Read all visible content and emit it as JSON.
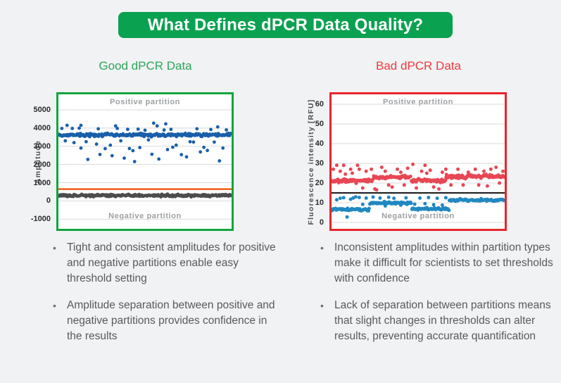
{
  "page": {
    "background": "#f1f2f3"
  },
  "banner": {
    "text": "What Defines dPCR Data Quality?",
    "bg": "#0aa150",
    "text_color": "#ffffff"
  },
  "columns": {
    "good": {
      "header": "Good dPCR Data",
      "header_color": "#2ca55c",
      "bullets": [
        "Tight and consistent amplitudes for positive and negative partitions enable easy threshold setting",
        "Amplitude separation between positive and negative partitions provides confidence in the results"
      ]
    },
    "bad": {
      "header": "Bad dPCR Data",
      "header_color": "#ef393f",
      "bullets": [
        "Inconsistent amplitudes within partition types make it difficult for scientists to set thresholds with confidence",
        "Lack of separation between partitions means that slight changes in thresholds can alter results, preventing accurate quantification"
      ]
    }
  },
  "chart_data": [
    {
      "type": "scatter",
      "title": "Good dPCR Data",
      "ylabel": "Amplitude",
      "xlabel": "",
      "ylim": [
        -1530,
        5850
      ],
      "xlim": [
        0,
        100
      ],
      "yticks": [
        5000,
        4000,
        3000,
        2000,
        1000,
        0,
        -1000
      ],
      "grid": true,
      "grid_color": "#d8d9db",
      "border_color": "#12a53e",
      "seed": 42,
      "annotations": {
        "positive": "Positive partition",
        "negative": "Negative partition"
      },
      "threshold": {
        "value": 650,
        "color": "#ef5a16",
        "width": 2.5
      },
      "series": [
        {
          "name": "positive-partition",
          "color": "#1a5fa9",
          "r": 2.4,
          "count": 270,
          "jitter": 120,
          "band": {
            "mean": 3620
          },
          "outliers": [
            [
              2,
              3980
            ],
            [
              4,
              3300
            ],
            [
              5,
              4150
            ],
            [
              8,
              3980
            ],
            [
              9,
              3200
            ],
            [
              12,
              3990
            ],
            [
              13,
              4150
            ],
            [
              13,
              2900
            ],
            [
              16,
              3250
            ],
            [
              17,
              2280
            ],
            [
              22,
              3120
            ],
            [
              23,
              3960
            ],
            [
              24,
              2550
            ],
            [
              27,
              2870
            ],
            [
              30,
              3060
            ],
            [
              31,
              2480
            ],
            [
              33,
              4120
            ],
            [
              34,
              3980
            ],
            [
              36,
              3300
            ],
            [
              38,
              2350
            ],
            [
              40,
              3930
            ],
            [
              41,
              2880
            ],
            [
              43,
              2760
            ],
            [
              44,
              2160
            ],
            [
              46,
              3940
            ],
            [
              47,
              2930
            ],
            [
              50,
              3880
            ],
            [
              52,
              3350
            ],
            [
              54,
              2560
            ],
            [
              55,
              4270
            ],
            [
              57,
              4120
            ],
            [
              58,
              2300
            ],
            [
              61,
              3890
            ],
            [
              62,
              4230
            ],
            [
              63,
              2820
            ],
            [
              65,
              3930
            ],
            [
              66,
              2950
            ],
            [
              68,
              3060
            ],
            [
              71,
              2540
            ],
            [
              74,
              2420
            ],
            [
              76,
              3250
            ],
            [
              78,
              3230
            ],
            [
              80,
              3960
            ],
            [
              82,
              2690
            ],
            [
              84,
              2940
            ],
            [
              86,
              2770
            ],
            [
              88,
              3920
            ],
            [
              90,
              3230
            ],
            [
              92,
              4060
            ],
            [
              93,
              2200
            ],
            [
              95,
              2900
            ],
            [
              97,
              3900
            ]
          ]
        },
        {
          "name": "negative-partition",
          "color": "#4d4d4f",
          "r": 2.4,
          "count": 270,
          "jitter": 95,
          "band": {
            "mean": 300
          },
          "outliers": []
        }
      ]
    },
    {
      "type": "scatter",
      "title": "Bad dPCR Data",
      "ylabel": "Fluorescence intensity [RFU]",
      "xlabel": "",
      "ylim": [
        -3.2,
        65
      ],
      "xlim": [
        0,
        100
      ],
      "yticks": [
        60,
        50,
        40,
        30,
        20,
        10,
        0
      ],
      "grid": true,
      "grid_color": "#d8d9db",
      "border_color": "#e9252c",
      "seed": 7,
      "annotations": {
        "positive": "Positive partition",
        "negative": "Negative partition"
      },
      "threshold": {
        "value": 15,
        "color": "#1a1a1a",
        "width": 2
      },
      "series": [
        {
          "name": "positive-partition",
          "color": "#e74754",
          "r": 2.5,
          "count": 240,
          "jitter": 1.3,
          "segments": [
            {
              "x0": 0,
              "x1": 24,
              "mean": 21
            },
            {
              "x0": 24,
              "x1": 46,
              "mean": 23
            },
            {
              "x0": 46,
              "x1": 66,
              "mean": 21.2
            },
            {
              "x0": 66,
              "x1": 100,
              "mean": 23.3
            }
          ],
          "outliers": [
            [
              1,
              27
            ],
            [
              3,
              29
            ],
            [
              5,
              26
            ],
            [
              7,
              29
            ],
            [
              8,
              24.5
            ],
            [
              11,
              27
            ],
            [
              12,
              25
            ],
            [
              15,
              29
            ],
            [
              16,
              27
            ],
            [
              18,
              17.5
            ],
            [
              20,
              26
            ],
            [
              23,
              27
            ],
            [
              25,
              17
            ],
            [
              26,
              16.5
            ],
            [
              29,
              28
            ],
            [
              31,
              26
            ],
            [
              33,
              19
            ],
            [
              35,
              18
            ],
            [
              38,
              27
            ],
            [
              40,
              25.5
            ],
            [
              42,
              19
            ],
            [
              44,
              27.5
            ],
            [
              47,
              29.5
            ],
            [
              49,
              17.5
            ],
            [
              52,
              26
            ],
            [
              54,
              29
            ],
            [
              55,
              25
            ],
            [
              57,
              26.5
            ],
            [
              59,
              18
            ],
            [
              62,
              17
            ],
            [
              64,
              25.5
            ],
            [
              66,
              27
            ],
            [
              69,
              19
            ],
            [
              73,
              27
            ],
            [
              76,
              19
            ],
            [
              79,
              25.5
            ],
            [
              83,
              27
            ],
            [
              85,
              19
            ],
            [
              88,
              26
            ],
            [
              90,
              18.5
            ],
            [
              92,
              27
            ],
            [
              95,
              28
            ],
            [
              97,
              20
            ],
            [
              99,
              26
            ]
          ]
        },
        {
          "name": "negative-partition",
          "color": "#2088c1",
          "r": 2.5,
          "count": 240,
          "jitter": 0.9,
          "segments": [
            {
              "x0": 0,
              "x1": 22,
              "mean": 6.6
            },
            {
              "x0": 22,
              "x1": 46,
              "mean": 9.9
            },
            {
              "x0": 46,
              "x1": 68,
              "mean": 6.9
            },
            {
              "x0": 68,
              "x1": 100,
              "mean": 11.4
            }
          ],
          "outliers": [
            [
              3,
              11.5
            ],
            [
              5,
              12.3
            ],
            [
              7,
              12.6
            ],
            [
              9,
              2.8
            ],
            [
              11,
              11.8
            ],
            [
              12.5,
              12.4
            ],
            [
              14,
              13
            ],
            [
              16,
              12.7
            ],
            [
              18,
              9.2
            ],
            [
              20,
              12.4
            ],
            [
              24,
              12.9
            ],
            [
              28,
              12.4
            ],
            [
              31,
              8.4
            ],
            [
              33,
              12.8
            ],
            [
              36,
              12.3
            ],
            [
              40,
              8.8
            ],
            [
              43,
              12.5
            ],
            [
              48,
              9.3
            ],
            [
              51,
              12.4
            ],
            [
              54,
              9.6
            ],
            [
              56,
              12.7
            ],
            [
              59,
              9.0
            ],
            [
              61,
              12.3
            ],
            [
              64,
              8.8
            ],
            [
              66,
              12.6
            ]
          ]
        }
      ]
    }
  ]
}
